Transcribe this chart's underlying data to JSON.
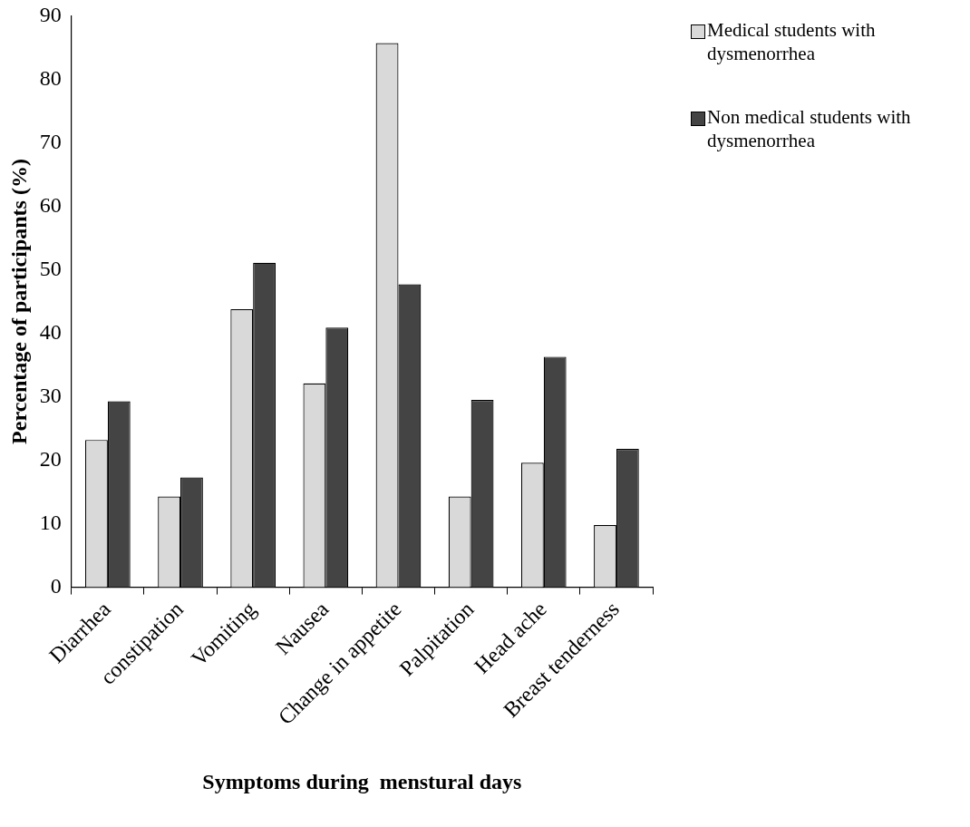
{
  "chart_data": {
    "type": "bar",
    "xlabel": "Symptoms during  menstural days",
    "ylabel": "Percentage of participants (%)",
    "categories": [
      "Diarrhea",
      "constipation",
      "Vomiting",
      "Nausea",
      "Change in appetite",
      "Palpitation",
      "Head ache",
      "Breast tenderness"
    ],
    "series": [
      {
        "name": "Medical students with dysmenorrhea",
        "color": "#d9d9d9",
        "values": [
          23.2,
          14.3,
          43.8,
          32.1,
          85.7,
          14.3,
          19.6,
          9.8
        ]
      },
      {
        "name": "Non medical students with dysmenorrhea",
        "color": "#444444",
        "values": [
          29.3,
          17.3,
          51.1,
          40.9,
          47.7,
          29.5,
          36.3,
          21.8
        ]
      }
    ],
    "ylim": [
      0,
      90
    ],
    "yticks": [
      0,
      10,
      20,
      30,
      40,
      50,
      60,
      70,
      80,
      90
    ],
    "grid": false,
    "legend": "top right"
  }
}
